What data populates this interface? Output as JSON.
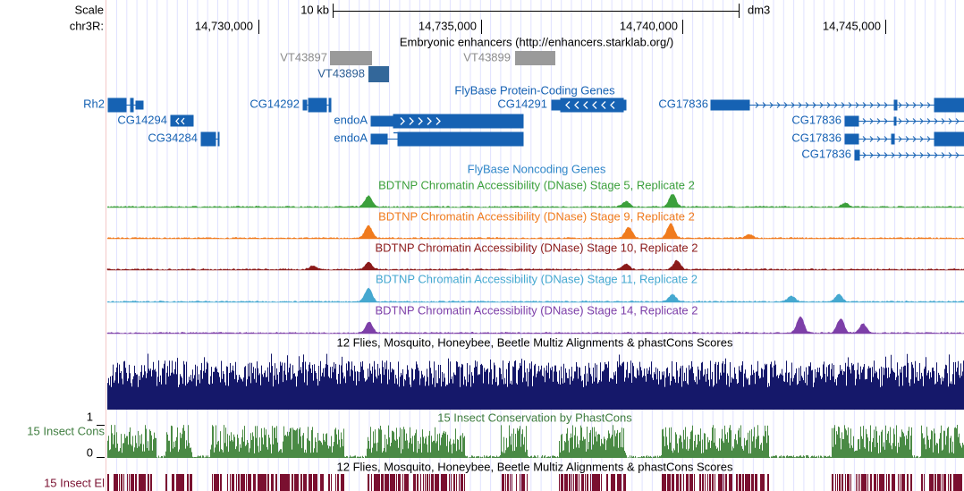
{
  "header": {
    "scale_label": "Scale",
    "chrom_label": "chr3R:",
    "scale_bar": "10 kb",
    "assembly": "dm3",
    "positions": [
      "14,730,000",
      "14,735,000",
      "14,740,000",
      "14,745,000"
    ]
  },
  "tracks": {
    "enhancers": {
      "title": "Embryonic enhancers (http://enhancers.starklab.org/)",
      "items": [
        "VT43897",
        "VT43898",
        "VT43899"
      ]
    },
    "protein_coding": {
      "title": "FlyBase Protein-Coding Genes",
      "genes": [
        "Rh2",
        "CG14294",
        "CG34284",
        "CG14292",
        "endoA",
        "endoA",
        "CG14291",
        "CG17836",
        "CG17836",
        "CG17836",
        "CG17836"
      ]
    },
    "noncoding": {
      "title": "FlyBase Noncoding Genes"
    },
    "dnase": [
      "BDTNP Chromatin Accessibility (DNase) Stage 5, Replicate 2",
      "BDTNP Chromatin Accessibility (DNase) Stage 9, Replicate 2",
      "BDTNP Chromatin Accessibility (DNase) Stage 10, Replicate 2",
      "BDTNP Chromatin Accessibility (DNase) Stage 11, Replicate 2",
      "BDTNP Chromatin Accessibility (DNase) Stage 14, Replicate 2"
    ],
    "multiz": {
      "title": "12 Flies, Mosquito, Honeybee, Beetle Multiz Alignments & phastCons Scores"
    },
    "phastcons": {
      "label": "15 Insect Cons",
      "ymax": "1",
      "ymin": "0",
      "title": "15 Insect Conservation by PhastCons"
    },
    "elements": {
      "label": "15 Insect El",
      "title": "12 Flies, Mosquito, Honeybee, Beetle Multiz Alignments & phastCons Scores"
    }
  }
}
